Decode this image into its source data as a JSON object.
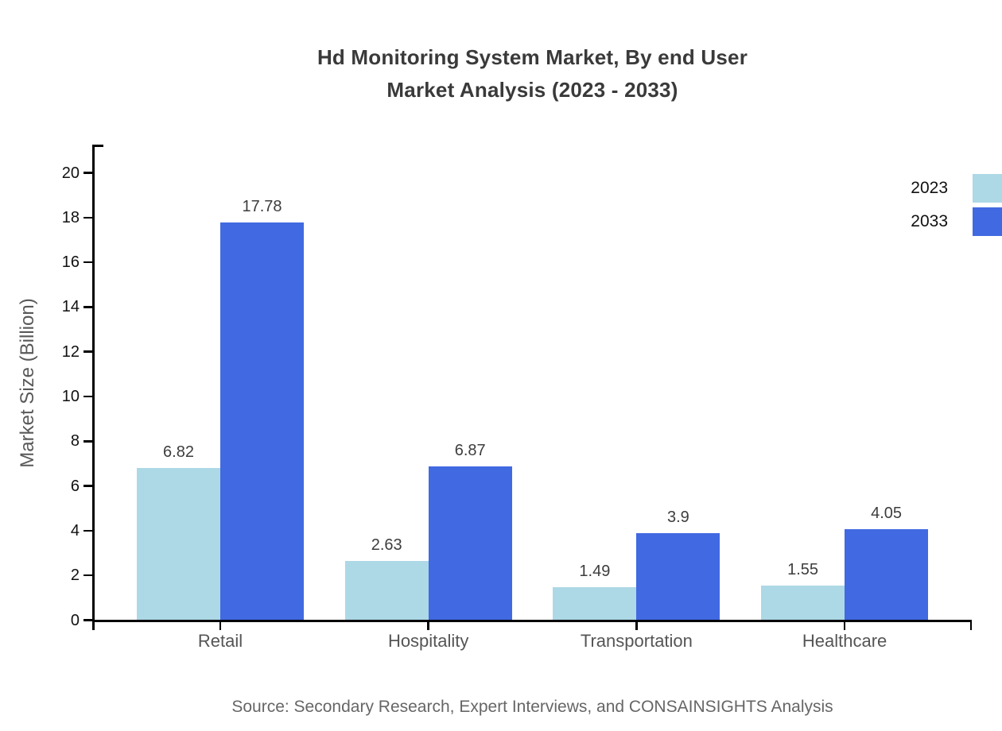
{
  "title_line1": "Hd Monitoring System Market, By end User",
  "title_line2": "Market Analysis (2023 - 2033)",
  "source_note": "Source: Secondary Research, Expert Interviews, and CONSAINSIGHTS Analysis",
  "colors": {
    "series_2023": "#ADD8E6",
    "series_2033": "#4169E1",
    "axis": "#000000",
    "title_text": "#3a3a3a",
    "category_text": "#555555",
    "tick_text": "#111111",
    "value_text": "#3d3d3d",
    "source_text": "#666666",
    "background": "#ffffff"
  },
  "chart_data": {
    "type": "bar",
    "title": "Hd Monitoring System Market, By end User Market Analysis (2023 - 2033)",
    "categories": [
      "Retail",
      "Hospitality",
      "Transportation",
      "Healthcare"
    ],
    "series": [
      {
        "name": "2023",
        "color": "#ADD8E6",
        "values": [
          6.82,
          2.63,
          1.49,
          1.55
        ]
      },
      {
        "name": "2033",
        "color": "#4169E1",
        "values": [
          17.78,
          6.87,
          3.9,
          4.05
        ]
      }
    ],
    "xlabel": "",
    "ylabel": "Market Size (Billion)",
    "ylim": [
      0,
      20
    ],
    "ytick_step": 2,
    "grid": false,
    "legend_position": "top-right",
    "value_labels": true
  }
}
